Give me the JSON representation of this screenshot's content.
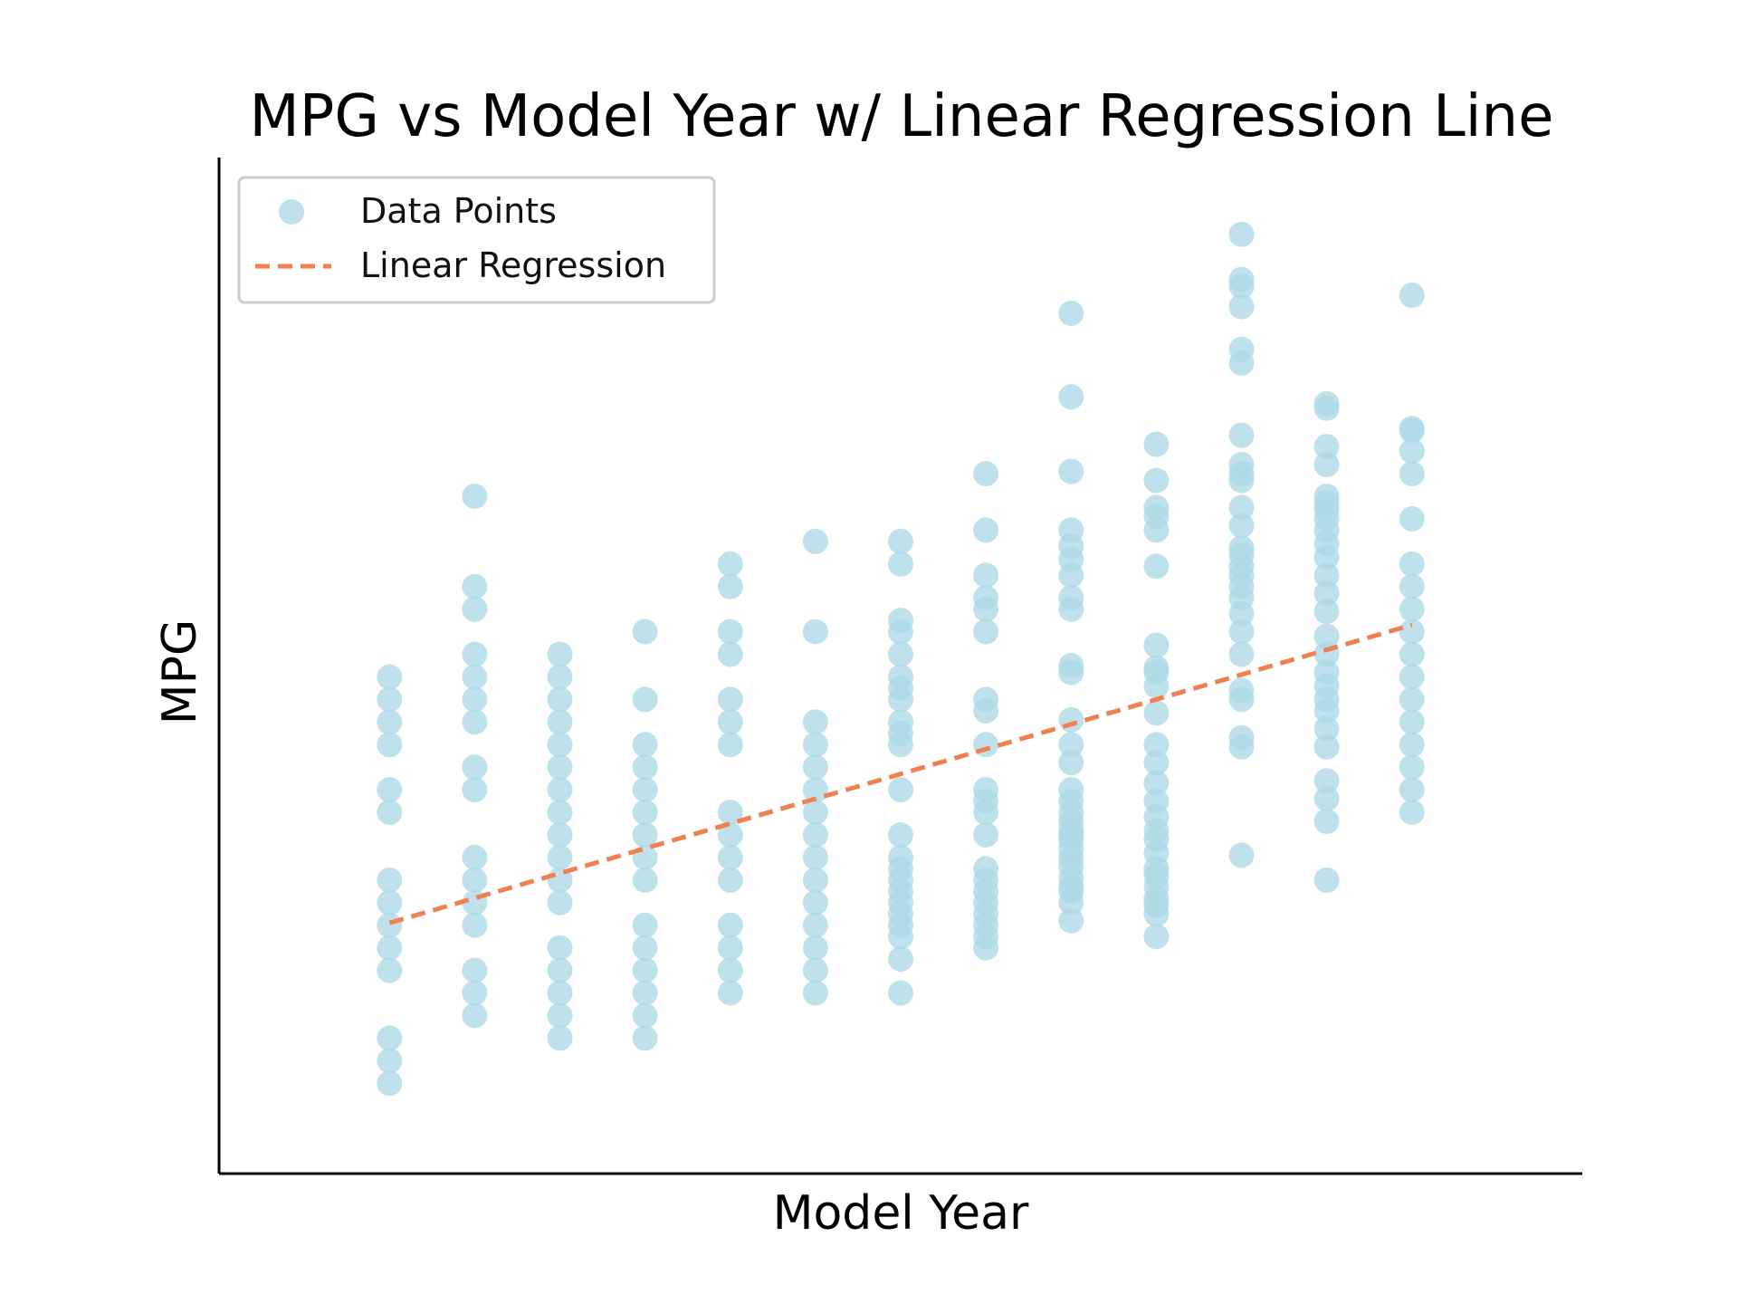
{
  "chart_data": {
    "type": "scatter",
    "title": "MPG vs Model Year w/ Linear Regression Line",
    "xlabel": "Model Year",
    "ylabel": "MPG",
    "xlim": [
      68.0,
      84.0
    ],
    "ylim": [
      5.0,
      50.0
    ],
    "grid": false,
    "x_ticks_shown": false,
    "y_ticks_shown": false,
    "legend": {
      "position": "top-left",
      "entries": [
        "Data Points",
        "Linear Regression"
      ]
    },
    "colors": {
      "points": "#add8e6",
      "regression": "#f0804f"
    },
    "series": [
      {
        "name": "Data Points",
        "kind": "scatter",
        "points": [
          [
            70,
            27
          ],
          [
            70,
            26
          ],
          [
            70,
            25
          ],
          [
            70,
            24
          ],
          [
            70,
            22
          ],
          [
            70,
            21
          ],
          [
            70,
            18
          ],
          [
            70,
            17
          ],
          [
            70,
            16
          ],
          [
            70,
            15
          ],
          [
            70,
            14
          ],
          [
            70,
            11
          ],
          [
            70,
            10
          ],
          [
            70,
            9
          ],
          [
            71,
            35
          ],
          [
            71,
            31
          ],
          [
            71,
            30
          ],
          [
            71,
            28
          ],
          [
            71,
            27
          ],
          [
            71,
            26
          ],
          [
            71,
            25
          ],
          [
            71,
            23
          ],
          [
            71,
            22
          ],
          [
            71,
            19
          ],
          [
            71,
            18
          ],
          [
            71,
            17
          ],
          [
            71,
            16
          ],
          [
            71,
            14
          ],
          [
            71,
            13
          ],
          [
            71,
            12
          ],
          [
            72,
            28
          ],
          [
            72,
            27
          ],
          [
            72,
            26
          ],
          [
            72,
            25
          ],
          [
            72,
            24
          ],
          [
            72,
            23
          ],
          [
            72,
            22
          ],
          [
            72,
            21
          ],
          [
            72,
            20
          ],
          [
            72,
            19
          ],
          [
            72,
            18
          ],
          [
            72,
            17
          ],
          [
            72,
            15
          ],
          [
            72,
            14
          ],
          [
            72,
            13
          ],
          [
            72,
            12
          ],
          [
            72,
            11
          ],
          [
            73,
            29
          ],
          [
            73,
            26
          ],
          [
            73,
            24
          ],
          [
            73,
            23
          ],
          [
            73,
            22
          ],
          [
            73,
            21
          ],
          [
            73,
            20
          ],
          [
            73,
            19
          ],
          [
            73,
            18
          ],
          [
            73,
            16
          ],
          [
            73,
            15
          ],
          [
            73,
            14
          ],
          [
            73,
            13
          ],
          [
            73,
            12
          ],
          [
            73,
            11
          ],
          [
            74,
            32
          ],
          [
            74,
            31
          ],
          [
            74,
            29
          ],
          [
            74,
            28
          ],
          [
            74,
            26
          ],
          [
            74,
            25
          ],
          [
            74,
            24
          ],
          [
            74,
            21
          ],
          [
            74,
            20
          ],
          [
            74,
            19
          ],
          [
            74,
            18
          ],
          [
            74,
            16
          ],
          [
            74,
            15
          ],
          [
            74,
            14
          ],
          [
            74,
            13
          ],
          [
            75,
            33
          ],
          [
            75,
            29
          ],
          [
            75,
            25
          ],
          [
            75,
            24
          ],
          [
            75,
            23
          ],
          [
            75,
            22
          ],
          [
            75,
            21
          ],
          [
            75,
            20
          ],
          [
            75,
            19
          ],
          [
            75,
            18
          ],
          [
            75,
            17
          ],
          [
            75,
            16
          ],
          [
            75,
            15
          ],
          [
            75,
            14
          ],
          [
            75,
            13
          ],
          [
            76,
            33
          ],
          [
            76,
            32
          ],
          [
            76,
            29.5
          ],
          [
            76,
            29
          ],
          [
            76,
            28
          ],
          [
            76,
            27
          ],
          [
            76,
            26.5
          ],
          [
            76,
            26
          ],
          [
            76,
            25
          ],
          [
            76,
            24.5
          ],
          [
            76,
            24
          ],
          [
            76,
            22
          ],
          [
            76,
            20
          ],
          [
            76,
            19
          ],
          [
            76,
            18.5
          ],
          [
            76,
            18
          ],
          [
            76,
            17.5
          ],
          [
            76,
            17
          ],
          [
            76,
            16.5
          ],
          [
            76,
            16
          ],
          [
            76,
            15.5
          ],
          [
            76,
            14.5
          ],
          [
            76,
            13
          ],
          [
            77,
            36
          ],
          [
            77,
            33.5
          ],
          [
            77,
            31.5
          ],
          [
            77,
            30.5
          ],
          [
            77,
            30
          ],
          [
            77,
            29
          ],
          [
            77,
            26
          ],
          [
            77,
            25.5
          ],
          [
            77,
            24
          ],
          [
            77,
            22
          ],
          [
            77,
            21.5
          ],
          [
            77,
            21
          ],
          [
            77,
            20
          ],
          [
            77,
            18.5
          ],
          [
            77,
            18
          ],
          [
            77,
            17.5
          ],
          [
            77,
            17
          ],
          [
            77,
            16.5
          ],
          [
            77,
            16
          ],
          [
            77,
            15.5
          ],
          [
            77,
            15
          ],
          [
            78,
            43.1
          ],
          [
            78,
            39.4
          ],
          [
            78,
            36.1
          ],
          [
            78,
            33.5
          ],
          [
            78,
            32.8
          ],
          [
            78,
            32.2
          ],
          [
            78,
            31.5
          ],
          [
            78,
            30.5
          ],
          [
            78,
            30
          ],
          [
            78,
            27.5
          ],
          [
            78,
            27.2
          ],
          [
            78,
            25.1
          ],
          [
            78,
            24
          ],
          [
            78,
            23.2
          ],
          [
            78,
            22
          ],
          [
            78,
            21.5
          ],
          [
            78,
            21
          ],
          [
            78,
            20.6
          ],
          [
            78,
            20.2
          ],
          [
            78,
            20
          ],
          [
            78,
            19.8
          ],
          [
            78,
            19.4
          ],
          [
            78,
            19
          ],
          [
            78,
            18.6
          ],
          [
            78,
            18.1
          ],
          [
            78,
            17.7
          ],
          [
            78,
            17.5
          ],
          [
            78,
            17
          ],
          [
            78,
            16.2
          ],
          [
            79,
            37.3
          ],
          [
            79,
            35.7
          ],
          [
            79,
            34.5
          ],
          [
            79,
            34.1
          ],
          [
            79,
            33.5
          ],
          [
            79,
            31.9
          ],
          [
            79,
            28.4
          ],
          [
            79,
            27.4
          ],
          [
            79,
            27.2
          ],
          [
            79,
            26.6
          ],
          [
            79,
            25.4
          ],
          [
            79,
            24
          ],
          [
            79,
            23.2
          ],
          [
            79,
            22.3
          ],
          [
            79,
            21.5
          ],
          [
            79,
            20.8
          ],
          [
            79,
            20.2
          ],
          [
            79,
            19.8
          ],
          [
            79,
            19.2
          ],
          [
            79,
            18.5
          ],
          [
            79,
            18.2
          ],
          [
            79,
            17.7
          ],
          [
            79,
            17.2
          ],
          [
            79,
            16.9
          ],
          [
            79,
            16.5
          ],
          [
            79,
            15.5
          ],
          [
            80,
            46.6
          ],
          [
            80,
            44.6
          ],
          [
            80,
            44.3
          ],
          [
            80,
            43.4
          ],
          [
            80,
            41.5
          ],
          [
            80,
            40.9
          ],
          [
            80,
            37.7
          ],
          [
            80,
            36.4
          ],
          [
            80,
            36
          ],
          [
            80,
            35.7
          ],
          [
            80,
            34.5
          ],
          [
            80,
            33.7
          ],
          [
            80,
            32.7
          ],
          [
            80,
            32.4
          ],
          [
            80,
            31.9
          ],
          [
            80,
            31.5
          ],
          [
            80,
            31
          ],
          [
            80,
            30.5
          ],
          [
            80,
            29.8
          ],
          [
            80,
            29
          ],
          [
            80,
            28
          ],
          [
            80,
            26.4
          ],
          [
            80,
            26
          ],
          [
            80,
            24.3
          ],
          [
            80,
            23.9
          ],
          [
            80,
            19.1
          ],
          [
            81,
            39.1
          ],
          [
            81,
            38.9
          ],
          [
            81,
            37.2
          ],
          [
            81,
            36.4
          ],
          [
            81,
            35
          ],
          [
            81,
            34.7
          ],
          [
            81,
            34.4
          ],
          [
            81,
            34
          ],
          [
            81,
            33.5
          ],
          [
            81,
            32.9
          ],
          [
            81,
            32.3
          ],
          [
            81,
            31.5
          ],
          [
            81,
            30.7
          ],
          [
            81,
            29.9
          ],
          [
            81,
            28.8
          ],
          [
            81,
            28
          ],
          [
            81,
            27.2
          ],
          [
            81,
            26.6
          ],
          [
            81,
            26
          ],
          [
            81,
            25.5
          ],
          [
            81,
            24.7
          ],
          [
            81,
            23.9
          ],
          [
            81,
            22.4
          ],
          [
            81,
            21.6
          ],
          [
            81,
            20.6
          ],
          [
            81,
            18
          ],
          [
            82,
            43.9
          ],
          [
            82,
            38
          ],
          [
            82,
            37.9
          ],
          [
            82,
            37
          ],
          [
            82,
            36
          ],
          [
            82,
            34
          ],
          [
            82,
            32
          ],
          [
            82,
            31
          ],
          [
            82,
            30
          ],
          [
            82,
            29
          ],
          [
            82,
            28
          ],
          [
            82,
            27
          ],
          [
            82,
            26
          ],
          [
            82,
            25
          ],
          [
            82,
            24
          ],
          [
            82,
            23
          ],
          [
            82,
            22
          ],
          [
            82,
            21
          ]
        ]
      },
      {
        "name": "Linear Regression",
        "kind": "line",
        "points": [
          [
            70,
            16.1
          ],
          [
            82,
            29.3
          ]
        ]
      }
    ]
  }
}
